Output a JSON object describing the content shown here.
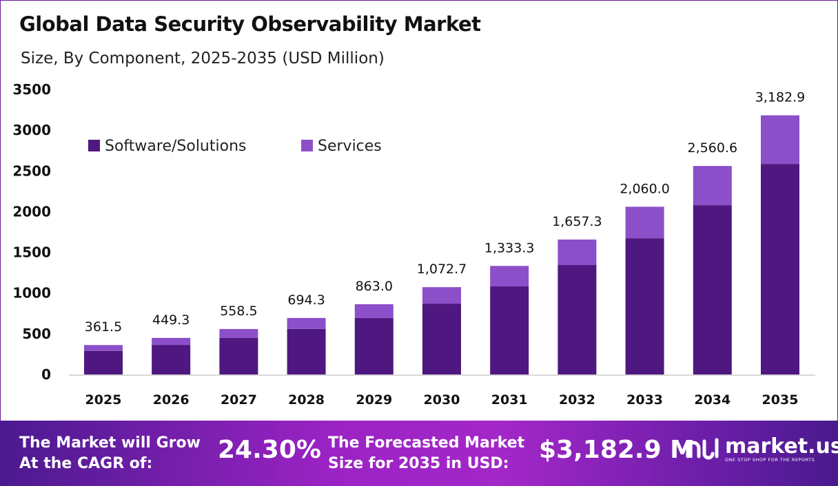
{
  "chart_data": {
    "type": "bar",
    "stacked": true,
    "title": "Global Data Security Observability Market",
    "subtitle": "Size, By Component, 2025-2035 (USD Million)",
    "categories": [
      "2025",
      "2026",
      "2027",
      "2028",
      "2029",
      "2030",
      "2031",
      "2032",
      "2033",
      "2034",
      "2035"
    ],
    "series": [
      {
        "name": "Software/Solutions",
        "color": "#4f1780",
        "values": [
          290,
          363,
          450,
          560,
          694,
          870,
          1082,
          1344,
          1673,
          2079,
          2586
        ]
      },
      {
        "name": "Services",
        "color": "#8b4fc9",
        "values": [
          71.5,
          86.3,
          108.5,
          134.3,
          169.0,
          202.7,
          251.3,
          313.3,
          387.0,
          481.6,
          596.9
        ]
      }
    ],
    "totals": [
      361.5,
      449.3,
      558.5,
      694.3,
      863.0,
      1072.7,
      1333.3,
      1657.3,
      2060.0,
      2560.6,
      3182.9
    ],
    "total_labels": [
      "361.5",
      "449.3",
      "558.5",
      "694.3",
      "863.0",
      "1,072.7",
      "1,333.3",
      "1,657.3",
      "2,060.0",
      "2,560.6",
      "3,182.9"
    ],
    "yticks": [
      "0",
      "500",
      "1000",
      "1500",
      "2000",
      "2500",
      "3000",
      "3500"
    ],
    "ylim": [
      0,
      3500
    ],
    "grid": false,
    "legend_position": "top-left"
  },
  "footer": {
    "cagr_label_line1": "The Market will Grow",
    "cagr_label_line2": "At the CAGR of:",
    "cagr_value": "24.30%",
    "forecast_label_line1": "The Forecasted Market",
    "forecast_label_line2": "Size for 2035 in USD:",
    "forecast_value": "$3,182.9 M",
    "brand_name": "market.us",
    "brand_tagline": "ONE STOP SHOP FOR THE REPORTS"
  }
}
